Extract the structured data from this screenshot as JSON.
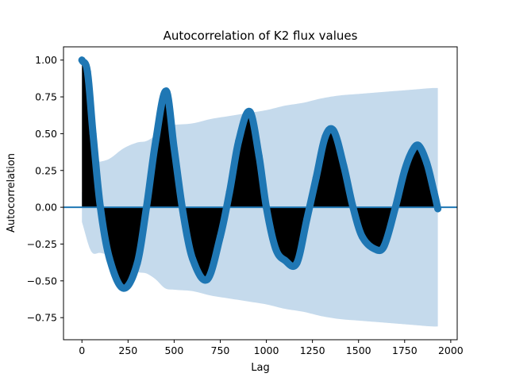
{
  "chart_data": {
    "type": "line",
    "title": "Autocorrelation of K2 flux values",
    "xlabel": "Lag",
    "ylabel": "Autocorrelation",
    "xlim": [
      -100,
      2035
    ],
    "ylim": [
      -0.9,
      1.09
    ],
    "xticks": [
      0,
      250,
      500,
      750,
      1000,
      1250,
      1500,
      1750,
      2000
    ],
    "xtick_labels": [
      "0",
      "250",
      "500",
      "750",
      "1000",
      "1250",
      "1500",
      "1750",
      "2000"
    ],
    "yticks": [
      1.0,
      0.75,
      0.5,
      0.25,
      0.0,
      -0.25,
      -0.5,
      -0.75
    ],
    "ytick_labels": [
      "1.00",
      "0.75",
      "0.50",
      "0.25",
      "0.00",
      "−0.25",
      "−0.50",
      "−0.75"
    ],
    "grid": false,
    "legend": "none",
    "series": [
      {
        "values_description": "autocorrelation at each lag",
        "x": [
          0,
          30,
          60,
          100,
          150,
          225,
          300,
          350,
          400,
          457,
          500,
          550,
          600,
          680,
          750,
          800,
          850,
          910,
          960,
          1000,
          1050,
          1100,
          1165,
          1220,
          1270,
          1320,
          1365,
          1420,
          1470,
          1520,
          1600,
          1640,
          1700,
          1750,
          1790,
          1825,
          1870,
          1910,
          1930
        ],
        "y": [
          1.0,
          0.92,
          0.5,
          0.0,
          -0.35,
          -0.55,
          -0.38,
          0.0,
          0.45,
          0.79,
          0.4,
          -0.05,
          -0.35,
          -0.49,
          -0.2,
          0.1,
          0.45,
          0.65,
          0.35,
          0.0,
          -0.28,
          -0.36,
          -0.38,
          -0.08,
          0.2,
          0.48,
          0.52,
          0.28,
          0.0,
          -0.2,
          -0.29,
          -0.26,
          0.0,
          0.25,
          0.38,
          0.42,
          0.3,
          0.1,
          -0.01
        ]
      }
    ],
    "confidence_band": {
      "x": [
        0,
        50,
        100,
        150,
        225,
        300,
        350,
        400,
        450,
        500,
        600,
        700,
        800,
        900,
        1000,
        1100,
        1200,
        1300,
        1400,
        1500,
        1600,
        1700,
        1800,
        1900,
        1930
      ],
      "upper": [
        0.1,
        0.3,
        0.31,
        0.33,
        0.4,
        0.44,
        0.45,
        0.49,
        0.55,
        0.56,
        0.57,
        0.6,
        0.62,
        0.64,
        0.66,
        0.69,
        0.71,
        0.74,
        0.76,
        0.77,
        0.78,
        0.79,
        0.8,
        0.81,
        0.81
      ],
      "lower": [
        -0.1,
        -0.3,
        -0.31,
        -0.33,
        -0.4,
        -0.44,
        -0.45,
        -0.49,
        -0.55,
        -0.56,
        -0.57,
        -0.6,
        -0.62,
        -0.64,
        -0.66,
        -0.69,
        -0.71,
        -0.74,
        -0.76,
        -0.77,
        -0.78,
        -0.79,
        -0.8,
        -0.81,
        -0.81
      ]
    },
    "colors": {
      "series": "#1f77b4",
      "band": "#c5daec",
      "fill": "#000000",
      "zero_line": "#1f77b4",
      "axes": "#000000"
    }
  }
}
